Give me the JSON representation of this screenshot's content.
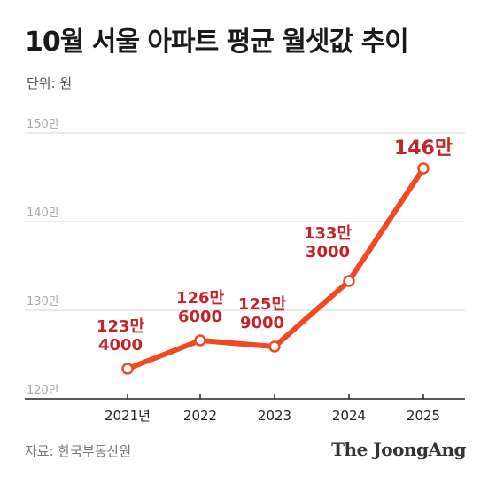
{
  "title": "10월 서울 아파트 평균 월셋값 추이",
  "unit_label": "단위: 원",
  "source": "자료: 한국부동산원",
  "brand": "The JoongAng",
  "colors": {
    "line": "#f04a23",
    "label": "#c2252b",
    "grid": "#d6d6d6",
    "axis": "#222222"
  },
  "chart_data": {
    "type": "line",
    "x": [
      "2021년",
      "2022",
      "2023",
      "2024",
      "2025"
    ],
    "y": [
      1234000,
      1266000,
      1259000,
      1333000,
      1460000
    ],
    "data_labels": [
      [
        "123만",
        "4000"
      ],
      [
        "126만",
        "6000"
      ],
      [
        "125만",
        "9000"
      ],
      [
        "133만",
        "3000"
      ],
      [
        "146만"
      ]
    ],
    "yticks": [
      {
        "value": 1200000,
        "label": "120만"
      },
      {
        "value": 1300000,
        "label": "130만"
      },
      {
        "value": 1400000,
        "label": "140만"
      },
      {
        "value": 1500000,
        "label": "150만"
      }
    ],
    "ylim": [
      1200000,
      1500000
    ],
    "grid": true,
    "legend": false
  }
}
